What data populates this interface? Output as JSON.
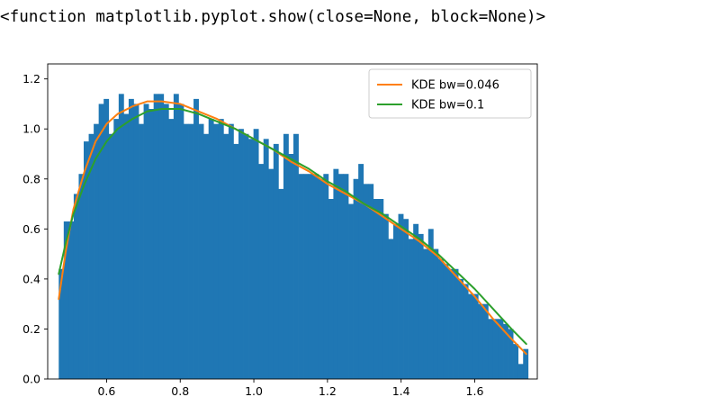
{
  "output": {
    "text": "<function matplotlib.pyplot.show(close=None, block=None)>"
  },
  "chart_data": {
    "type": "bar",
    "title": "",
    "xlabel": "",
    "ylabel": "",
    "xlim": [
      0.44,
      1.77
    ],
    "ylim": [
      0,
      1.26
    ],
    "grid": false,
    "legend_position": "top-right",
    "x_ticks": [
      0.6,
      0.8,
      1.0,
      1.2,
      1.4,
      1.6
    ],
    "x_tick_labels": [
      "0.6",
      "0.8",
      "1.0",
      "1.2",
      "1.4",
      "1.6"
    ],
    "y_ticks": [
      0.0,
      0.2,
      0.4,
      0.6,
      0.8,
      1.0,
      1.2
    ],
    "y_tick_labels": [
      "0.0",
      "0.2",
      "0.4",
      "0.6",
      "0.8",
      "1.0",
      "1.2"
    ],
    "histogram": {
      "color": "#1f77b4",
      "bin_start": 0.47,
      "bin_end": 1.745,
      "values": [
        0.44,
        0.63,
        0.63,
        0.74,
        0.82,
        0.95,
        0.98,
        1.02,
        1.1,
        1.12,
        0.98,
        1.04,
        1.14,
        1.06,
        1.12,
        1.1,
        1.02,
        1.1,
        1.08,
        1.14,
        1.14,
        1.1,
        1.04,
        1.14,
        1.1,
        1.02,
        1.02,
        1.12,
        1.02,
        0.98,
        1.04,
        1.02,
        1.04,
        0.98,
        1.02,
        0.94,
        1.0,
        0.98,
        0.96,
        1.0,
        0.86,
        0.96,
        0.84,
        0.94,
        0.76,
        0.98,
        0.9,
        0.98,
        0.82,
        0.82,
        0.82,
        0.82,
        0.8,
        0.82,
        0.72,
        0.84,
        0.82,
        0.82,
        0.7,
        0.8,
        0.86,
        0.78,
        0.78,
        0.72,
        0.72,
        0.66,
        0.56,
        0.62,
        0.66,
        0.64,
        0.56,
        0.62,
        0.58,
        0.52,
        0.6,
        0.52,
        0.48,
        0.46,
        0.44,
        0.44,
        0.4,
        0.38,
        0.34,
        0.34,
        0.3,
        0.3,
        0.24,
        0.24,
        0.24,
        0.22,
        0.2,
        0.14,
        0.06,
        0.12
      ]
    },
    "series": [
      {
        "name": "KDE bw=0.046",
        "color": "#ff7f0e",
        "x": [
          0.47,
          0.49,
          0.51,
          0.54,
          0.57,
          0.6,
          0.63,
          0.67,
          0.71,
          0.75,
          0.8,
          0.85,
          0.9,
          0.95,
          1.0,
          1.05,
          1.1,
          1.15,
          1.2,
          1.25,
          1.3,
          1.35,
          1.4,
          1.45,
          1.5,
          1.55,
          1.6,
          1.65,
          1.7,
          1.74
        ],
        "y": [
          0.32,
          0.52,
          0.68,
          0.83,
          0.95,
          1.02,
          1.06,
          1.09,
          1.11,
          1.11,
          1.1,
          1.07,
          1.04,
          1.0,
          0.96,
          0.92,
          0.87,
          0.83,
          0.78,
          0.74,
          0.7,
          0.65,
          0.6,
          0.55,
          0.49,
          0.41,
          0.33,
          0.24,
          0.16,
          0.1
        ]
      },
      {
        "name": "KDE bw=0.1",
        "color": "#2ca02c",
        "x": [
          0.47,
          0.49,
          0.51,
          0.54,
          0.57,
          0.6,
          0.63,
          0.67,
          0.71,
          0.75,
          0.8,
          0.85,
          0.9,
          0.95,
          1.0,
          1.05,
          1.1,
          1.15,
          1.2,
          1.25,
          1.3,
          1.35,
          1.4,
          1.45,
          1.5,
          1.55,
          1.6,
          1.65,
          1.7,
          1.74
        ],
        "y": [
          0.42,
          0.55,
          0.66,
          0.78,
          0.88,
          0.95,
          1.0,
          1.04,
          1.07,
          1.08,
          1.08,
          1.06,
          1.03,
          1.0,
          0.96,
          0.92,
          0.88,
          0.84,
          0.79,
          0.75,
          0.7,
          0.66,
          0.61,
          0.56,
          0.5,
          0.43,
          0.36,
          0.28,
          0.2,
          0.14
        ]
      }
    ]
  }
}
